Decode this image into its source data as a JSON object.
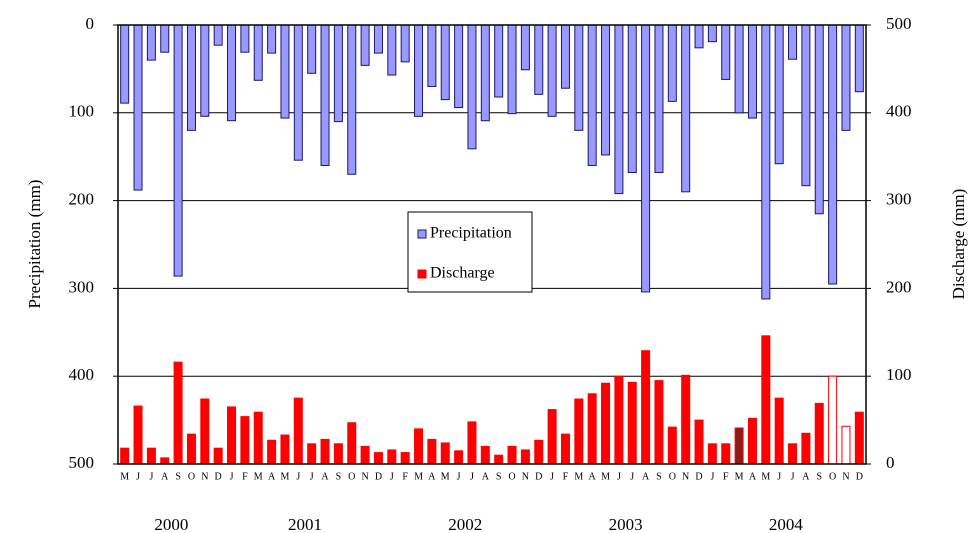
{
  "chart_data": {
    "type": "bar",
    "categories": [
      "M",
      "J",
      "J",
      "A",
      "S",
      "O",
      "N",
      "D",
      "J",
      "F",
      "M",
      "A",
      "M",
      "J",
      "J",
      "A",
      "S",
      "O",
      "N",
      "D",
      "J",
      "F",
      "M",
      "A",
      "M",
      "J",
      "J",
      "A",
      "S",
      "O",
      "N",
      "D",
      "J",
      "F",
      "M",
      "A",
      "M",
      "J",
      "J",
      "A",
      "S",
      "O",
      "N",
      "D",
      "J",
      "F",
      "M",
      "A",
      "M",
      "J",
      "J",
      "A",
      "S",
      "O",
      "N",
      "D"
    ],
    "year_labels": [
      "2000",
      "2001",
      "2002",
      "2003",
      "2004"
    ],
    "y_label": "Precipitation (mm)",
    "y2_label": "Discharge (mm)",
    "ylim": [
      0,
      500
    ],
    "y_inverted": true,
    "yticks": [
      0,
      100,
      200,
      300,
      400,
      500
    ],
    "y2lim": [
      0,
      500
    ],
    "y2ticks": [
      0,
      100,
      200,
      300,
      400,
      500
    ],
    "grid": true,
    "legend": "center",
    "series": [
      {
        "name": "Precipitation",
        "color": "#9999ff",
        "values": [
          89,
          188,
          40,
          31,
          286,
          120,
          104,
          23,
          109,
          31,
          63,
          32,
          106,
          154,
          55,
          160,
          110,
          170,
          46,
          32,
          57,
          42,
          104,
          70,
          85,
          94,
          141,
          109,
          82,
          101,
          51,
          79,
          104,
          72,
          120,
          160,
          148,
          192,
          168,
          304,
          168,
          87,
          190,
          26,
          19,
          62,
          100,
          106,
          312,
          158,
          39,
          183,
          215,
          295,
          120,
          76
        ]
      },
      {
        "name": "Discharge",
        "color": "#ff0000",
        "axis": "y2",
        "colors": [
          "#ff0000",
          "#ff0000",
          "#ff0000",
          "#ff0000",
          "#ff0000",
          "#ff0000",
          "#ff0000",
          "#ff0000",
          "#ff0000",
          "#ff0000",
          "#ff0000",
          "#ff0000",
          "#ff0000",
          "#ff0000",
          "#ff0000",
          "#ff0000",
          "#ff0000",
          "#ff0000",
          "#ff0000",
          "#ff0000",
          "#ff0000",
          "#ff0000",
          "#ff0000",
          "#ff0000",
          "#ff0000",
          "#ff0000",
          "#ff0000",
          "#ff0000",
          "#ff0000",
          "#ff0000",
          "#ff0000",
          "#ff0000",
          "#ff0000",
          "#ff0000",
          "#ff0000",
          "#ff0000",
          "#ff0000",
          "#ff0000",
          "#ff0000",
          "#ff0000",
          "#ff0000",
          "#ff0000",
          "#ff0000",
          "#ff0000",
          "#ff0000",
          "#ff0000",
          "#8b1a1a",
          "#ff0000",
          "#ff0000",
          "#ff0000",
          "#ff0000",
          "#ff0000",
          "#ff0000",
          "#ffffff",
          "#ffffff",
          "#ff0000"
        ],
        "values": [
          18,
          66,
          18,
          7,
          116,
          34,
          74,
          18,
          65,
          54,
          59,
          27,
          33,
          75,
          23,
          28,
          23,
          47,
          20,
          13,
          16,
          13,
          40,
          28,
          24,
          15,
          48,
          20,
          10,
          20,
          16,
          27,
          62,
          34,
          74,
          80,
          92,
          100,
          93,
          129,
          95,
          42,
          101,
          50,
          23,
          23,
          41,
          52,
          146,
          75,
          23,
          35,
          69,
          100,
          43,
          59
        ]
      }
    ]
  }
}
